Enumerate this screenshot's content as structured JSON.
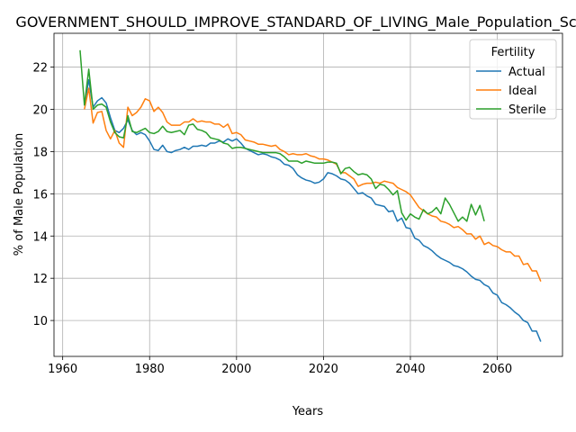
{
  "chart_data": {
    "type": "line",
    "title": "GOVERNMENT_SHOULD_IMPROVE_STANDARD_OF_LIVING_Male_Population_Score",
    "xlabel": "Years",
    "ylabel": "% of Male Population",
    "xlim": [
      1958,
      2075
    ],
    "ylim": [
      8.3,
      23.6
    ],
    "xticks": [
      1960,
      1980,
      2000,
      2020,
      2040,
      2060
    ],
    "yticks": [
      10,
      12,
      14,
      16,
      18,
      20,
      22
    ],
    "grid": true,
    "legend": {
      "title": "Fertility",
      "placement": "top-right"
    },
    "series": [
      {
        "name": "Actual",
        "color": "#1f77b4",
        "points": [
          [
            1965,
            20.2
          ],
          [
            1966,
            21.4
          ],
          [
            1967,
            20.1
          ],
          [
            1968,
            20.4
          ],
          [
            1969,
            20.55
          ],
          [
            1970,
            20.3
          ],
          [
            1971,
            19.6
          ],
          [
            1972,
            19.0
          ],
          [
            1973,
            18.9
          ],
          [
            1974,
            19.1
          ],
          [
            1975,
            19.5
          ],
          [
            1976,
            19.0
          ],
          [
            1977,
            18.8
          ],
          [
            1978,
            18.9
          ],
          [
            1979,
            18.8
          ],
          [
            1980,
            18.5
          ],
          [
            1981,
            18.1
          ],
          [
            1982,
            18.05
          ],
          [
            1983,
            18.3
          ],
          [
            1984,
            18.0
          ],
          [
            1985,
            17.95
          ],
          [
            1986,
            18.05
          ],
          [
            1987,
            18.1
          ],
          [
            1988,
            18.2
          ],
          [
            1989,
            18.1
          ],
          [
            1990,
            18.25
          ],
          [
            1991,
            18.25
          ],
          [
            1992,
            18.3
          ],
          [
            1993,
            18.25
          ],
          [
            1994,
            18.4
          ],
          [
            1995,
            18.4
          ],
          [
            1996,
            18.5
          ],
          [
            1997,
            18.45
          ],
          [
            1998,
            18.6
          ],
          [
            1999,
            18.5
          ],
          [
            2000,
            18.6
          ],
          [
            2001,
            18.4
          ],
          [
            2002,
            18.15
          ],
          [
            2003,
            18.05
          ],
          [
            2004,
            17.95
          ],
          [
            2005,
            17.85
          ],
          [
            2006,
            17.9
          ],
          [
            2007,
            17.85
          ],
          [
            2008,
            17.75
          ],
          [
            2009,
            17.7
          ],
          [
            2010,
            17.6
          ],
          [
            2011,
            17.4
          ],
          [
            2012,
            17.35
          ],
          [
            2013,
            17.2
          ],
          [
            2014,
            16.9
          ],
          [
            2015,
            16.75
          ],
          [
            2016,
            16.65
          ],
          [
            2017,
            16.6
          ],
          [
            2018,
            16.5
          ],
          [
            2019,
            16.55
          ],
          [
            2020,
            16.7
          ],
          [
            2021,
            17.0
          ],
          [
            2022,
            16.95
          ],
          [
            2023,
            16.85
          ],
          [
            2024,
            16.7
          ],
          [
            2025,
            16.65
          ],
          [
            2026,
            16.5
          ],
          [
            2027,
            16.25
          ],
          [
            2028,
            16.0
          ],
          [
            2029,
            16.05
          ],
          [
            2030,
            15.9
          ],
          [
            2031,
            15.8
          ],
          [
            2032,
            15.5
          ],
          [
            2033,
            15.45
          ],
          [
            2034,
            15.4
          ],
          [
            2035,
            15.15
          ],
          [
            2036,
            15.2
          ],
          [
            2037,
            14.7
          ],
          [
            2038,
            14.85
          ],
          [
            2039,
            14.4
          ],
          [
            2040,
            14.35
          ],
          [
            2041,
            13.9
          ],
          [
            2042,
            13.8
          ],
          [
            2043,
            13.55
          ],
          [
            2044,
            13.45
          ],
          [
            2045,
            13.3
          ],
          [
            2046,
            13.1
          ],
          [
            2047,
            12.95
          ],
          [
            2048,
            12.85
          ],
          [
            2049,
            12.75
          ],
          [
            2050,
            12.6
          ],
          [
            2051,
            12.55
          ],
          [
            2052,
            12.45
          ],
          [
            2053,
            12.3
          ],
          [
            2054,
            12.1
          ],
          [
            2055,
            11.95
          ],
          [
            2056,
            11.9
          ],
          [
            2057,
            11.7
          ],
          [
            2058,
            11.6
          ],
          [
            2059,
            11.3
          ],
          [
            2060,
            11.2
          ],
          [
            2061,
            10.85
          ],
          [
            2062,
            10.75
          ],
          [
            2063,
            10.6
          ],
          [
            2064,
            10.4
          ],
          [
            2065,
            10.25
          ],
          [
            2066,
            10.0
          ],
          [
            2067,
            9.9
          ],
          [
            2068,
            9.5
          ],
          [
            2069,
            9.5
          ],
          [
            2070,
            9.0
          ]
        ]
      },
      {
        "name": "Ideal",
        "color": "#ff7f0e",
        "points": [
          [
            1965,
            20.0
          ],
          [
            1966,
            21.0
          ],
          [
            1967,
            19.35
          ],
          [
            1968,
            19.85
          ],
          [
            1969,
            19.9
          ],
          [
            1970,
            19.0
          ],
          [
            1971,
            18.6
          ],
          [
            1972,
            19.0
          ],
          [
            1973,
            18.4
          ],
          [
            1974,
            18.2
          ],
          [
            1975,
            20.1
          ],
          [
            1976,
            19.7
          ],
          [
            1977,
            19.85
          ],
          [
            1978,
            20.1
          ],
          [
            1979,
            20.5
          ],
          [
            1980,
            20.4
          ],
          [
            1981,
            19.9
          ],
          [
            1982,
            20.1
          ],
          [
            1983,
            19.85
          ],
          [
            1984,
            19.4
          ],
          [
            1985,
            19.25
          ],
          [
            1986,
            19.25
          ],
          [
            1987,
            19.25
          ],
          [
            1988,
            19.4
          ],
          [
            1989,
            19.4
          ],
          [
            1990,
            19.55
          ],
          [
            1991,
            19.4
          ],
          [
            1992,
            19.45
          ],
          [
            1993,
            19.4
          ],
          [
            1994,
            19.4
          ],
          [
            1995,
            19.3
          ],
          [
            1996,
            19.3
          ],
          [
            1997,
            19.15
          ],
          [
            1998,
            19.3
          ],
          [
            1999,
            18.85
          ],
          [
            2000,
            18.9
          ],
          [
            2001,
            18.8
          ],
          [
            2002,
            18.55
          ],
          [
            2003,
            18.5
          ],
          [
            2004,
            18.45
          ],
          [
            2005,
            18.35
          ],
          [
            2006,
            18.35
          ],
          [
            2007,
            18.3
          ],
          [
            2008,
            18.25
          ],
          [
            2009,
            18.3
          ],
          [
            2010,
            18.1
          ],
          [
            2011,
            18.0
          ],
          [
            2012,
            17.85
          ],
          [
            2013,
            17.9
          ],
          [
            2014,
            17.85
          ],
          [
            2015,
            17.85
          ],
          [
            2016,
            17.9
          ],
          [
            2017,
            17.8
          ],
          [
            2018,
            17.75
          ],
          [
            2019,
            17.65
          ],
          [
            2020,
            17.65
          ],
          [
            2021,
            17.6
          ],
          [
            2022,
            17.5
          ],
          [
            2023,
            17.4
          ],
          [
            2024,
            17.0
          ],
          [
            2025,
            17.0
          ],
          [
            2026,
            16.85
          ],
          [
            2027,
            16.7
          ],
          [
            2028,
            16.35
          ],
          [
            2029,
            16.45
          ],
          [
            2030,
            16.5
          ],
          [
            2031,
            16.5
          ],
          [
            2032,
            16.55
          ],
          [
            2033,
            16.5
          ],
          [
            2034,
            16.6
          ],
          [
            2035,
            16.55
          ],
          [
            2036,
            16.5
          ],
          [
            2037,
            16.3
          ],
          [
            2038,
            16.2
          ],
          [
            2039,
            16.1
          ],
          [
            2040,
            15.95
          ],
          [
            2041,
            15.65
          ],
          [
            2042,
            15.35
          ],
          [
            2043,
            15.2
          ],
          [
            2044,
            15.05
          ],
          [
            2045,
            14.95
          ],
          [
            2046,
            14.9
          ],
          [
            2047,
            14.7
          ],
          [
            2048,
            14.65
          ],
          [
            2049,
            14.55
          ],
          [
            2050,
            14.4
          ],
          [
            2051,
            14.45
          ],
          [
            2052,
            14.3
          ],
          [
            2053,
            14.1
          ],
          [
            2054,
            14.1
          ],
          [
            2055,
            13.85
          ],
          [
            2056,
            14.0
          ],
          [
            2057,
            13.6
          ],
          [
            2058,
            13.7
          ],
          [
            2059,
            13.55
          ],
          [
            2060,
            13.5
          ],
          [
            2061,
            13.35
          ],
          [
            2062,
            13.25
          ],
          [
            2063,
            13.25
          ],
          [
            2064,
            13.05
          ],
          [
            2065,
            13.05
          ],
          [
            2066,
            12.65
          ],
          [
            2067,
            12.7
          ],
          [
            2068,
            12.35
          ],
          [
            2069,
            12.35
          ],
          [
            2070,
            11.85
          ]
        ]
      },
      {
        "name": "Sterile",
        "color": "#2ca02c",
        "points": [
          [
            1964,
            22.8
          ],
          [
            1965,
            20.2
          ],
          [
            1966,
            21.9
          ],
          [
            1967,
            20.0
          ],
          [
            1968,
            20.2
          ],
          [
            1969,
            20.25
          ],
          [
            1970,
            20.1
          ],
          [
            1971,
            19.4
          ],
          [
            1972,
            18.9
          ],
          [
            1973,
            18.7
          ],
          [
            1974,
            18.65
          ],
          [
            1975,
            19.7
          ],
          [
            1976,
            18.95
          ],
          [
            1977,
            18.9
          ],
          [
            1978,
            19.0
          ],
          [
            1979,
            19.1
          ],
          [
            1980,
            18.9
          ],
          [
            1981,
            18.85
          ],
          [
            1982,
            18.95
          ],
          [
            1983,
            19.2
          ],
          [
            1984,
            18.95
          ],
          [
            1985,
            18.9
          ],
          [
            1986,
            18.95
          ],
          [
            1987,
            19.0
          ],
          [
            1988,
            18.8
          ],
          [
            1989,
            19.25
          ],
          [
            1990,
            19.3
          ],
          [
            1991,
            19.05
          ],
          [
            1992,
            19.0
          ],
          [
            1993,
            18.9
          ],
          [
            1994,
            18.65
          ],
          [
            1995,
            18.6
          ],
          [
            1996,
            18.55
          ],
          [
            1997,
            18.4
          ],
          [
            1998,
            18.35
          ],
          [
            1999,
            18.15
          ],
          [
            2000,
            18.2
          ],
          [
            2001,
            18.2
          ],
          [
            2002,
            18.15
          ],
          [
            2003,
            18.1
          ],
          [
            2004,
            18.05
          ],
          [
            2005,
            18.0
          ],
          [
            2006,
            17.95
          ],
          [
            2007,
            17.95
          ],
          [
            2008,
            17.95
          ],
          [
            2009,
            17.95
          ],
          [
            2010,
            17.9
          ],
          [
            2011,
            17.75
          ],
          [
            2012,
            17.55
          ],
          [
            2013,
            17.55
          ],
          [
            2014,
            17.55
          ],
          [
            2015,
            17.45
          ],
          [
            2016,
            17.55
          ],
          [
            2017,
            17.5
          ],
          [
            2018,
            17.45
          ],
          [
            2019,
            17.45
          ],
          [
            2020,
            17.45
          ],
          [
            2021,
            17.5
          ],
          [
            2022,
            17.5
          ],
          [
            2023,
            17.45
          ],
          [
            2024,
            16.95
          ],
          [
            2025,
            17.2
          ],
          [
            2026,
            17.25
          ],
          [
            2027,
            17.05
          ],
          [
            2028,
            16.9
          ],
          [
            2029,
            16.95
          ],
          [
            2030,
            16.9
          ],
          [
            2031,
            16.7
          ],
          [
            2032,
            16.25
          ],
          [
            2033,
            16.45
          ],
          [
            2034,
            16.4
          ],
          [
            2035,
            16.2
          ],
          [
            2036,
            15.95
          ],
          [
            2037,
            16.15
          ],
          [
            2038,
            15.1
          ],
          [
            2039,
            14.75
          ],
          [
            2040,
            15.05
          ],
          [
            2041,
            14.9
          ],
          [
            2042,
            14.8
          ],
          [
            2043,
            15.25
          ],
          [
            2044,
            15.05
          ],
          [
            2045,
            15.15
          ],
          [
            2046,
            15.35
          ],
          [
            2047,
            15.05
          ],
          [
            2048,
            15.8
          ],
          [
            2049,
            15.5
          ],
          [
            2050,
            15.1
          ],
          [
            2051,
            14.7
          ],
          [
            2052,
            14.9
          ],
          [
            2053,
            14.7
          ],
          [
            2054,
            15.5
          ],
          [
            2055,
            15.0
          ],
          [
            2056,
            15.45
          ],
          [
            2057,
            14.7
          ]
        ]
      }
    ]
  }
}
